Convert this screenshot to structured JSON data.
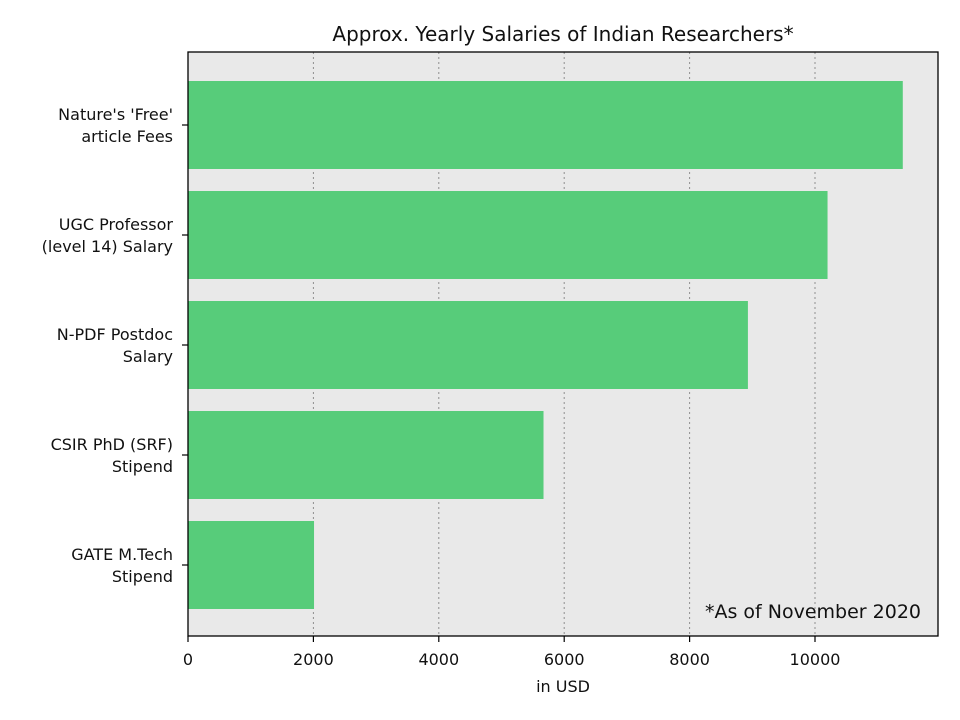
{
  "chart_data": {
    "type": "bar",
    "orientation": "horizontal",
    "title": "Approx. Yearly Salaries of Indian Researchers*",
    "xlabel": "in USD",
    "ylabel": "",
    "categories": [
      [
        "Nature's 'Free'",
        "article Fees"
      ],
      [
        "UGC Professor",
        "(level 14) Salary"
      ],
      [
        "N-PDF Postdoc",
        "Salary"
      ],
      [
        "CSIR PhD (SRF)",
        "Stipend"
      ],
      [
        "GATE M.Tech",
        "Stipend"
      ]
    ],
    "values": [
      11400,
      10200,
      8930,
      5670,
      2010
    ],
    "xlim": [
      0,
      12000
    ],
    "xticks": [
      0,
      2000,
      4000,
      6000,
      8000,
      10000
    ],
    "grid": "x-dotted",
    "annotation": "*As of November 2020",
    "colors": {
      "bar": "#57CC7A",
      "plot_background": "#E9E9E9",
      "grid": "#8E8E8E",
      "frame": "#000000"
    }
  }
}
